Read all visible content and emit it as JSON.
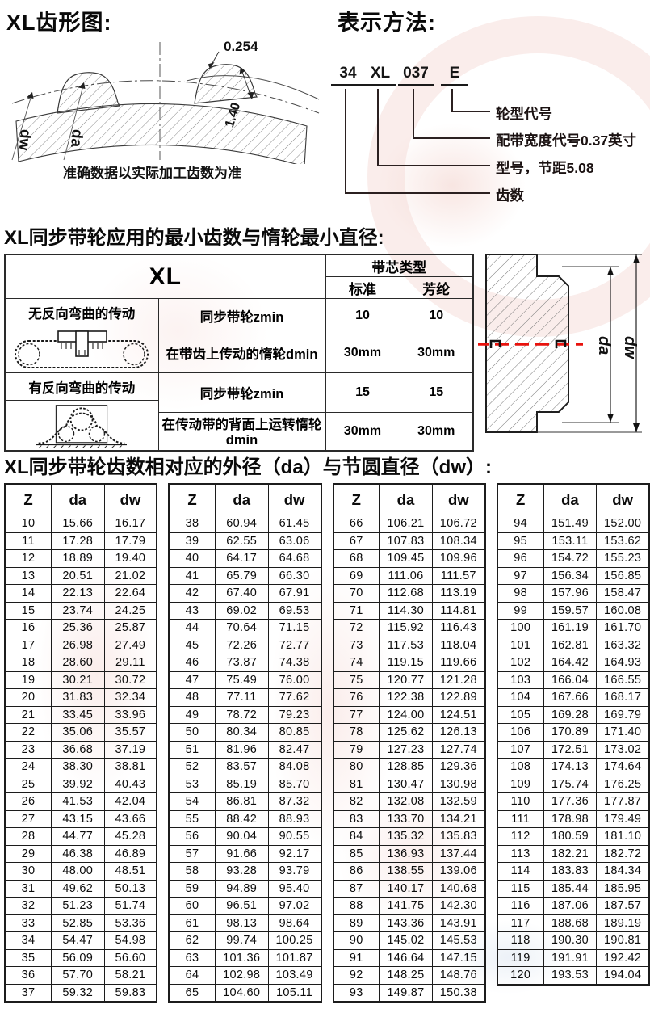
{
  "page": {
    "tooth_section_title": "XL齿形图:",
    "designation_section_title": "表示方法:",
    "min_teeth_title": "XL同步带轮应用的最小齿数与惰轮最小直径:",
    "diameter_title": "XL同步带轮齿数相对应的外径（da）与节圆直径（dw）:"
  },
  "tooth_diagram": {
    "dim_gap": "0.254",
    "dim_tooth_height": "1.40",
    "label_dw": "dw",
    "label_da": "da",
    "note": "准确数据以实际加工齿数为准"
  },
  "designation": {
    "parts": [
      "34",
      "XL",
      "037",
      "E"
    ],
    "labels": [
      "轮型代号",
      "配带宽度代号0.37英寸",
      "型号，节距5.08",
      "齿数"
    ]
  },
  "min_teeth_table": {
    "product": "XL",
    "core_type_header": "带芯类型",
    "core_types": [
      "标准",
      "芳纶"
    ],
    "groups": [
      {
        "label": "无反向弯曲的传动",
        "rows": [
          {
            "desc": "同步带轮zmin",
            "std": "10",
            "aramid": "10"
          },
          {
            "desc": "在带齿上传动的惰轮dmin",
            "std": "30mm",
            "aramid": "30mm"
          }
        ]
      },
      {
        "label": "有反向弯曲的传动",
        "rows": [
          {
            "desc": "同步带轮zmin",
            "std": "15",
            "aramid": "15"
          },
          {
            "desc": "在传动带的背面上运转惰轮dmin",
            "std": "30mm",
            "aramid": "30mm"
          }
        ]
      }
    ]
  },
  "cross_section": {
    "label_da": "da",
    "label_dw": "dw"
  },
  "diameter_section": {
    "headers": [
      "Z",
      "da",
      "dw"
    ],
    "tables": [
      [
        [
          "10",
          "15.66",
          "16.17"
        ],
        [
          "11",
          "17.28",
          "17.79"
        ],
        [
          "12",
          "18.89",
          "19.40"
        ],
        [
          "13",
          "20.51",
          "21.02"
        ],
        [
          "14",
          "22.13",
          "22.64"
        ],
        [
          "15",
          "23.74",
          "24.25"
        ],
        [
          "16",
          "25.36",
          "25.87"
        ],
        [
          "17",
          "26.98",
          "27.49"
        ],
        [
          "18",
          "28.60",
          "29.11"
        ],
        [
          "19",
          "30.21",
          "30.72"
        ],
        [
          "20",
          "31.83",
          "32.34"
        ],
        [
          "21",
          "33.45",
          "33.96"
        ],
        [
          "22",
          "35.06",
          "35.57"
        ],
        [
          "23",
          "36.68",
          "37.19"
        ],
        [
          "24",
          "38.30",
          "38.81"
        ],
        [
          "25",
          "39.92",
          "40.43"
        ],
        [
          "26",
          "41.53",
          "42.04"
        ],
        [
          "27",
          "43.15",
          "43.66"
        ],
        [
          "28",
          "44.77",
          "45.28"
        ],
        [
          "29",
          "46.38",
          "46.89"
        ],
        [
          "30",
          "48.00",
          "48.51"
        ],
        [
          "31",
          "49.62",
          "50.13"
        ],
        [
          "32",
          "51.23",
          "51.74"
        ],
        [
          "33",
          "52.85",
          "53.36"
        ],
        [
          "34",
          "54.47",
          "54.98"
        ],
        [
          "35",
          "56.09",
          "56.60"
        ],
        [
          "36",
          "57.70",
          "58.21"
        ],
        [
          "37",
          "59.32",
          "59.83"
        ]
      ],
      [
        [
          "38",
          "60.94",
          "61.45"
        ],
        [
          "39",
          "62.55",
          "63.06"
        ],
        [
          "40",
          "64.17",
          "64.68"
        ],
        [
          "41",
          "65.79",
          "66.30"
        ],
        [
          "42",
          "67.40",
          "67.91"
        ],
        [
          "43",
          "69.02",
          "69.53"
        ],
        [
          "44",
          "70.64",
          "71.15"
        ],
        [
          "45",
          "72.26",
          "72.77"
        ],
        [
          "46",
          "73.87",
          "74.38"
        ],
        [
          "47",
          "75.49",
          "76.00"
        ],
        [
          "48",
          "77.11",
          "77.62"
        ],
        [
          "49",
          "78.72",
          "79.23"
        ],
        [
          "50",
          "80.34",
          "80.85"
        ],
        [
          "51",
          "81.96",
          "82.47"
        ],
        [
          "52",
          "83.57",
          "84.08"
        ],
        [
          "53",
          "85.19",
          "85.70"
        ],
        [
          "54",
          "86.81",
          "87.32"
        ],
        [
          "55",
          "88.42",
          "88.93"
        ],
        [
          "56",
          "90.04",
          "90.55"
        ],
        [
          "57",
          "91.66",
          "92.17"
        ],
        [
          "58",
          "93.28",
          "93.79"
        ],
        [
          "59",
          "94.89",
          "95.40"
        ],
        [
          "60",
          "96.51",
          "97.02"
        ],
        [
          "61",
          "98.13",
          "98.64"
        ],
        [
          "62",
          "99.74",
          "100.25"
        ],
        [
          "63",
          "101.36",
          "101.87"
        ],
        [
          "64",
          "102.98",
          "103.49"
        ],
        [
          "65",
          "104.60",
          "105.11"
        ]
      ],
      [
        [
          "66",
          "106.21",
          "106.72"
        ],
        [
          "67",
          "107.83",
          "108.34"
        ],
        [
          "68",
          "109.45",
          "109.96"
        ],
        [
          "69",
          "111.06",
          "111.57"
        ],
        [
          "70",
          "112.68",
          "113.19"
        ],
        [
          "71",
          "114.30",
          "114.81"
        ],
        [
          "72",
          "115.92",
          "116.43"
        ],
        [
          "73",
          "117.53",
          "118.04"
        ],
        [
          "74",
          "119.15",
          "119.66"
        ],
        [
          "75",
          "120.77",
          "121.28"
        ],
        [
          "76",
          "122.38",
          "122.89"
        ],
        [
          "77",
          "124.00",
          "124.51"
        ],
        [
          "78",
          "125.62",
          "126.13"
        ],
        [
          "79",
          "127.23",
          "127.74"
        ],
        [
          "80",
          "128.85",
          "129.36"
        ],
        [
          "81",
          "130.47",
          "130.98"
        ],
        [
          "82",
          "132.08",
          "132.59"
        ],
        [
          "83",
          "133.70",
          "134.21"
        ],
        [
          "84",
          "135.32",
          "135.83"
        ],
        [
          "85",
          "136.93",
          "137.44"
        ],
        [
          "86",
          "138.55",
          "139.06"
        ],
        [
          "87",
          "140.17",
          "140.68"
        ],
        [
          "88",
          "141.75",
          "142.30"
        ],
        [
          "89",
          "143.36",
          "143.91"
        ],
        [
          "90",
          "145.02",
          "145.53"
        ],
        [
          "91",
          "146.64",
          "147.15"
        ],
        [
          "92",
          "148.25",
          "148.76"
        ],
        [
          "93",
          "149.87",
          "150.38"
        ]
      ],
      [
        [
          "94",
          "151.49",
          "152.00"
        ],
        [
          "95",
          "153.11",
          "153.62"
        ],
        [
          "96",
          "154.72",
          "155.23"
        ],
        [
          "97",
          "156.34",
          "156.85"
        ],
        [
          "98",
          "157.96",
          "158.47"
        ],
        [
          "99",
          "159.57",
          "160.08"
        ],
        [
          "100",
          "161.19",
          "161.70"
        ],
        [
          "101",
          "162.81",
          "163.32"
        ],
        [
          "102",
          "164.42",
          "164.93"
        ],
        [
          "103",
          "166.04",
          "166.55"
        ],
        [
          "104",
          "167.66",
          "168.17"
        ],
        [
          "105",
          "169.28",
          "169.79"
        ],
        [
          "106",
          "170.89",
          "171.40"
        ],
        [
          "107",
          "172.51",
          "173.02"
        ],
        [
          "108",
          "174.13",
          "174.64"
        ],
        [
          "109",
          "175.74",
          "176.25"
        ],
        [
          "110",
          "177.36",
          "177.87"
        ],
        [
          "111",
          "178.98",
          "179.49"
        ],
        [
          "112",
          "180.59",
          "181.10"
        ],
        [
          "113",
          "182.21",
          "182.72"
        ],
        [
          "114",
          "183.83",
          "184.34"
        ],
        [
          "115",
          "185.44",
          "185.95"
        ],
        [
          "116",
          "187.06",
          "187.57"
        ],
        [
          "117",
          "188.68",
          "189.19"
        ],
        [
          "118",
          "190.30",
          "190.81"
        ],
        [
          "119",
          "191.91",
          "192.42"
        ],
        [
          "120",
          "193.53",
          "194.04"
        ]
      ]
    ]
  }
}
